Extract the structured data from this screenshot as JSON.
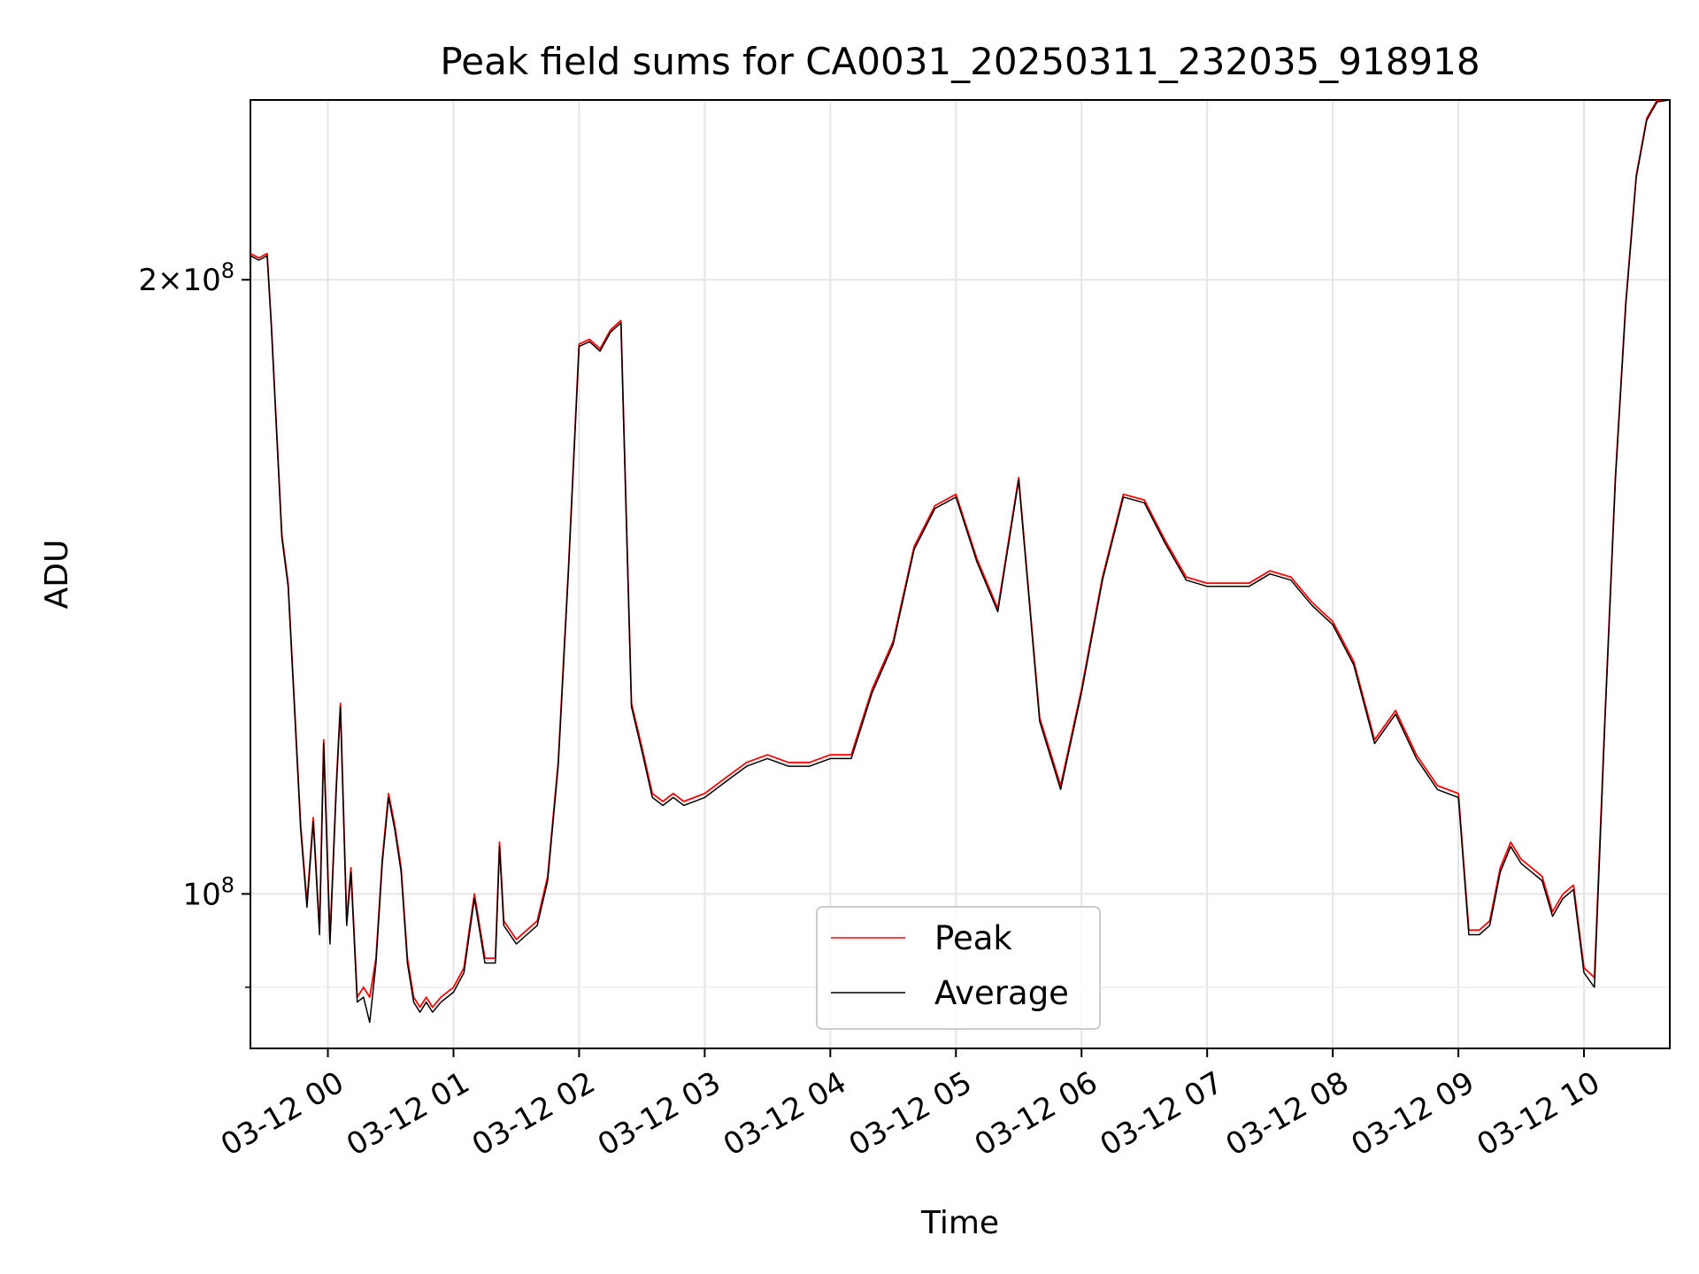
{
  "chart_data": {
    "type": "line",
    "title": "Peak field sums for CA0031_20250311_232035_918918",
    "xlabel": "Time",
    "ylabel": "ADU",
    "yscale": "log",
    "grid": true,
    "legend_position": "lower-center",
    "x_ticks": [
      "03-12 00",
      "03-12 01",
      "03-12 02",
      "03-12 03",
      "03-12 04",
      "03-12 05",
      "03-12 06",
      "03-12 07",
      "03-12 08",
      "03-12 09",
      "03-12 10"
    ],
    "y_major_ticks": [
      {
        "value": 100000000,
        "mantissa": "",
        "base": "10",
        "exp": "8"
      },
      {
        "value": 200000000,
        "mantissa": "2",
        "base": "10",
        "exp": "8"
      }
    ],
    "y_minor_ticks": [
      90000000
    ],
    "x_start": "03-11 23:23",
    "x_end": "03-12 10:41",
    "ylim": [
      84000000,
      245000000
    ],
    "series": [
      {
        "name": "Peak",
        "color": "#ff0000",
        "points": [
          [
            "03-11 23:23",
            206000000
          ],
          [
            "03-11 23:27",
            205000000
          ],
          [
            "03-11 23:31",
            206000000
          ],
          [
            "03-11 23:33",
            190000000
          ],
          [
            "03-11 23:38",
            150000000
          ],
          [
            "03-11 23:41",
            142000000
          ],
          [
            "03-11 23:44",
            124000000
          ],
          [
            "03-11 23:47",
            108000000
          ],
          [
            "03-11 23:50",
            99000000
          ],
          [
            "03-11 23:53",
            109000000
          ],
          [
            "03-11 23:56",
            96000000
          ],
          [
            "03-11 23:58",
            119000000
          ],
          [
            "03-12 00:01",
            95000000
          ],
          [
            "03-12 00:04",
            113000000
          ],
          [
            "03-12 00:06",
            124000000
          ],
          [
            "03-12 00:09",
            97000000
          ],
          [
            "03-12 00:11",
            103000000
          ],
          [
            "03-12 00:14",
            89000000
          ],
          [
            "03-12 00:17",
            90000000
          ],
          [
            "03-12 00:20",
            89000000
          ],
          [
            "03-12 00:23",
            93000000
          ],
          [
            "03-12 00:26",
            104000000
          ],
          [
            "03-12 00:29",
            112000000
          ],
          [
            "03-12 00:32",
            108000000
          ],
          [
            "03-12 00:35",
            103000000
          ],
          [
            "03-12 00:38",
            93000000
          ],
          [
            "03-12 00:41",
            89000000
          ],
          [
            "03-12 00:44",
            88000000
          ],
          [
            "03-12 00:47",
            89000000
          ],
          [
            "03-12 00:50",
            88000000
          ],
          [
            "03-12 00:54",
            89000000
          ],
          [
            "03-12 01:00",
            90000000
          ],
          [
            "03-12 01:05",
            92000000
          ],
          [
            "03-12 01:10",
            100000000
          ],
          [
            "03-12 01:15",
            93000000
          ],
          [
            "03-12 01:20",
            93000000
          ],
          [
            "03-12 01:22",
            106000000
          ],
          [
            "03-12 01:24",
            97000000
          ],
          [
            "03-12 01:30",
            95000000
          ],
          [
            "03-12 01:40",
            97000000
          ],
          [
            "03-12 01:45",
            102000000
          ],
          [
            "03-12 01:50",
            116000000
          ],
          [
            "03-12 01:55",
            145000000
          ],
          [
            "03-12 02:00",
            186000000
          ],
          [
            "03-12 02:05",
            187000000
          ],
          [
            "03-12 02:10",
            185000000
          ],
          [
            "03-12 02:15",
            189000000
          ],
          [
            "03-12 02:20",
            191000000
          ],
          [
            "03-12 02:25",
            124000000
          ],
          [
            "03-12 02:30",
            118000000
          ],
          [
            "03-12 02:35",
            112000000
          ],
          [
            "03-12 02:40",
            111000000
          ],
          [
            "03-12 02:45",
            112000000
          ],
          [
            "03-12 02:50",
            111000000
          ],
          [
            "03-12 03:00",
            112000000
          ],
          [
            "03-12 03:10",
            114000000
          ],
          [
            "03-12 03:20",
            116000000
          ],
          [
            "03-12 03:30",
            117000000
          ],
          [
            "03-12 03:40",
            116000000
          ],
          [
            "03-12 03:50",
            116000000
          ],
          [
            "03-12 04:00",
            117000000
          ],
          [
            "03-12 04:10",
            117000000
          ],
          [
            "03-12 04:20",
            126000000
          ],
          [
            "03-12 04:30",
            133000000
          ],
          [
            "03-12 04:40",
            148000000
          ],
          [
            "03-12 04:50",
            155000000
          ],
          [
            "03-12 05:00",
            157000000
          ],
          [
            "03-12 05:10",
            146000000
          ],
          [
            "03-12 05:20",
            138000000
          ],
          [
            "03-12 05:30",
            160000000
          ],
          [
            "03-12 05:40",
            122000000
          ],
          [
            "03-12 05:50",
            113000000
          ],
          [
            "03-12 06:00",
            126000000
          ],
          [
            "03-12 06:10",
            143000000
          ],
          [
            "03-12 06:20",
            157000000
          ],
          [
            "03-12 06:30",
            156000000
          ],
          [
            "03-12 06:40",
            149000000
          ],
          [
            "03-12 06:50",
            143000000
          ],
          [
            "03-12 07:00",
            142000000
          ],
          [
            "03-12 07:10",
            142000000
          ],
          [
            "03-12 07:20",
            142000000
          ],
          [
            "03-12 07:30",
            144000000
          ],
          [
            "03-12 07:40",
            143000000
          ],
          [
            "03-12 07:50",
            139000000
          ],
          [
            "03-12 08:00",
            136000000
          ],
          [
            "03-12 08:10",
            130000000
          ],
          [
            "03-12 08:20",
            119000000
          ],
          [
            "03-12 08:30",
            123000000
          ],
          [
            "03-12 08:40",
            117000000
          ],
          [
            "03-12 08:50",
            113000000
          ],
          [
            "03-12 09:00",
            112000000
          ],
          [
            "03-12 09:05",
            96000000
          ],
          [
            "03-12 09:10",
            96000000
          ],
          [
            "03-12 09:15",
            97000000
          ],
          [
            "03-12 09:20",
            103000000
          ],
          [
            "03-12 09:25",
            106000000
          ],
          [
            "03-12 09:30",
            104000000
          ],
          [
            "03-12 09:35",
            103000000
          ],
          [
            "03-12 09:40",
            102000000
          ],
          [
            "03-12 09:45",
            98000000
          ],
          [
            "03-12 09:50",
            100000000
          ],
          [
            "03-12 09:55",
            101000000
          ],
          [
            "03-12 10:00",
            92000000
          ],
          [
            "03-12 10:05",
            91000000
          ],
          [
            "03-12 10:10",
            122000000
          ],
          [
            "03-12 10:15",
            160000000
          ],
          [
            "03-12 10:20",
            195000000
          ],
          [
            "03-12 10:25",
            225000000
          ],
          [
            "03-12 10:30",
            240000000
          ],
          [
            "03-12 10:35",
            245000000
          ],
          [
            "03-12 10:41",
            245000000
          ]
        ]
      },
      {
        "name": "Average",
        "color": "#000000",
        "points": [
          [
            "03-11 23:23",
            205500000
          ],
          [
            "03-11 23:27",
            204500000
          ],
          [
            "03-11 23:31",
            205500000
          ],
          [
            "03-11 23:33",
            189500000
          ],
          [
            "03-11 23:38",
            149500000
          ],
          [
            "03-11 23:41",
            141500000
          ],
          [
            "03-11 23:44",
            123500000
          ],
          [
            "03-11 23:47",
            107500000
          ],
          [
            "03-11 23:50",
            98500000
          ],
          [
            "03-11 23:53",
            108500000
          ],
          [
            "03-11 23:56",
            95500000
          ],
          [
            "03-11 23:58",
            118500000
          ],
          [
            "03-12 00:01",
            94500000
          ],
          [
            "03-12 00:04",
            112500000
          ],
          [
            "03-12 00:06",
            123500000
          ],
          [
            "03-12 00:09",
            96500000
          ],
          [
            "03-12 00:11",
            102500000
          ],
          [
            "03-12 00:14",
            88500000
          ],
          [
            "03-12 00:17",
            89000000
          ],
          [
            "03-12 00:20",
            86500000
          ],
          [
            "03-12 00:23",
            92500000
          ],
          [
            "03-12 00:26",
            103500000
          ],
          [
            "03-12 00:29",
            111500000
          ],
          [
            "03-12 00:32",
            107500000
          ],
          [
            "03-12 00:35",
            102500000
          ],
          [
            "03-12 00:38",
            92500000
          ],
          [
            "03-12 00:41",
            88500000
          ],
          [
            "03-12 00:44",
            87500000
          ],
          [
            "03-12 00:47",
            88500000
          ],
          [
            "03-12 00:50",
            87500000
          ],
          [
            "03-12 00:54",
            88500000
          ],
          [
            "03-12 01:00",
            89500000
          ],
          [
            "03-12 01:05",
            91500000
          ],
          [
            "03-12 01:10",
            99500000
          ],
          [
            "03-12 01:15",
            92500000
          ],
          [
            "03-12 01:20",
            92500000
          ],
          [
            "03-12 01:22",
            105500000
          ],
          [
            "03-12 01:24",
            96500000
          ],
          [
            "03-12 01:30",
            94500000
          ],
          [
            "03-12 01:40",
            96500000
          ],
          [
            "03-12 01:45",
            101500000
          ],
          [
            "03-12 01:50",
            115500000
          ],
          [
            "03-12 01:55",
            144500000
          ],
          [
            "03-12 02:00",
            185500000
          ],
          [
            "03-12 02:05",
            186500000
          ],
          [
            "03-12 02:10",
            184500000
          ],
          [
            "03-12 02:15",
            188500000
          ],
          [
            "03-12 02:20",
            190500000
          ],
          [
            "03-12 02:25",
            123500000
          ],
          [
            "03-12 02:30",
            117500000
          ],
          [
            "03-12 02:35",
            111500000
          ],
          [
            "03-12 02:40",
            110500000
          ],
          [
            "03-12 02:45",
            111500000
          ],
          [
            "03-12 02:50",
            110500000
          ],
          [
            "03-12 03:00",
            111500000
          ],
          [
            "03-12 03:10",
            113500000
          ],
          [
            "03-12 03:20",
            115500000
          ],
          [
            "03-12 03:30",
            116500000
          ],
          [
            "03-12 03:40",
            115500000
          ],
          [
            "03-12 03:50",
            115500000
          ],
          [
            "03-12 04:00",
            116500000
          ],
          [
            "03-12 04:10",
            116500000
          ],
          [
            "03-12 04:20",
            125500000
          ],
          [
            "03-12 04:30",
            132500000
          ],
          [
            "03-12 04:40",
            147500000
          ],
          [
            "03-12 04:50",
            154500000
          ],
          [
            "03-12 05:00",
            156500000
          ],
          [
            "03-12 05:10",
            145500000
          ],
          [
            "03-12 05:20",
            137500000
          ],
          [
            "03-12 05:30",
            159500000
          ],
          [
            "03-12 05:40",
            121500000
          ],
          [
            "03-12 05:50",
            112500000
          ],
          [
            "03-12 06:00",
            125500000
          ],
          [
            "03-12 06:10",
            142500000
          ],
          [
            "03-12 06:20",
            156500000
          ],
          [
            "03-12 06:30",
            155500000
          ],
          [
            "03-12 06:40",
            148500000
          ],
          [
            "03-12 06:50",
            142500000
          ],
          [
            "03-12 07:00",
            141500000
          ],
          [
            "03-12 07:10",
            141500000
          ],
          [
            "03-12 07:20",
            141500000
          ],
          [
            "03-12 07:30",
            143500000
          ],
          [
            "03-12 07:40",
            142500000
          ],
          [
            "03-12 07:50",
            138500000
          ],
          [
            "03-12 08:00",
            135500000
          ],
          [
            "03-12 08:10",
            129500000
          ],
          [
            "03-12 08:20",
            118500000
          ],
          [
            "03-12 08:30",
            122500000
          ],
          [
            "03-12 08:40",
            116500000
          ],
          [
            "03-12 08:50",
            112500000
          ],
          [
            "03-12 09:00",
            111500000
          ],
          [
            "03-12 09:05",
            95500000
          ],
          [
            "03-12 09:10",
            95500000
          ],
          [
            "03-12 09:15",
            96500000
          ],
          [
            "03-12 09:20",
            102500000
          ],
          [
            "03-12 09:25",
            105500000
          ],
          [
            "03-12 09:30",
            103500000
          ],
          [
            "03-12 09:35",
            102500000
          ],
          [
            "03-12 09:40",
            101500000
          ],
          [
            "03-12 09:45",
            97500000
          ],
          [
            "03-12 09:50",
            99500000
          ],
          [
            "03-12 09:55",
            100500000
          ],
          [
            "03-12 10:00",
            91500000
          ],
          [
            "03-12 10:05",
            90000000
          ],
          [
            "03-12 10:10",
            121500000
          ],
          [
            "03-12 10:15",
            159500000
          ],
          [
            "03-12 10:20",
            194500000
          ],
          [
            "03-12 10:25",
            224500000
          ],
          [
            "03-12 10:30",
            239500000
          ],
          [
            "03-12 10:35",
            244500000
          ],
          [
            "03-12 10:41",
            245000000
          ]
        ]
      }
    ]
  }
}
